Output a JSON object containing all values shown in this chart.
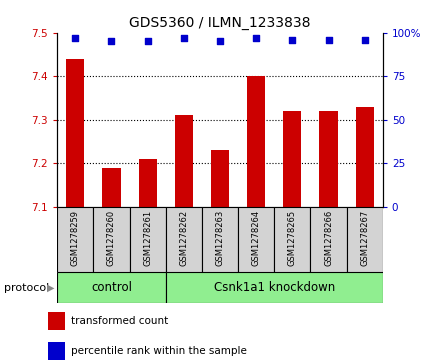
{
  "title": "GDS5360 / ILMN_1233838",
  "samples": [
    "GSM1278259",
    "GSM1278260",
    "GSM1278261",
    "GSM1278262",
    "GSM1278263",
    "GSM1278264",
    "GSM1278265",
    "GSM1278266",
    "GSM1278267"
  ],
  "bar_values": [
    7.44,
    7.19,
    7.21,
    7.31,
    7.23,
    7.4,
    7.32,
    7.32,
    7.33
  ],
  "percentile_values": [
    97,
    95,
    95,
    97,
    95,
    97,
    96,
    96,
    96
  ],
  "bar_color": "#cc0000",
  "dot_color": "#0000cc",
  "ylim_left": [
    7.1,
    7.5
  ],
  "ylim_right": [
    0,
    100
  ],
  "yticks_left": [
    7.1,
    7.2,
    7.3,
    7.4,
    7.5
  ],
  "yticks_right": [
    0,
    25,
    50,
    75,
    100
  ],
  "right_tick_labels": [
    "0",
    "25",
    "50",
    "75",
    "100%"
  ],
  "control_samples": 3,
  "control_label": "control",
  "treatment_label": "Csnk1a1 knockdown",
  "protocol_label": "protocol",
  "legend_bar_label": "transformed count",
  "legend_dot_label": "percentile rank within the sample",
  "control_bg": "#90ee90",
  "treatment_bg": "#90ee90",
  "bar_baseline": 7.1,
  "cell_bg": "#d3d3d3",
  "bar_width": 0.5
}
